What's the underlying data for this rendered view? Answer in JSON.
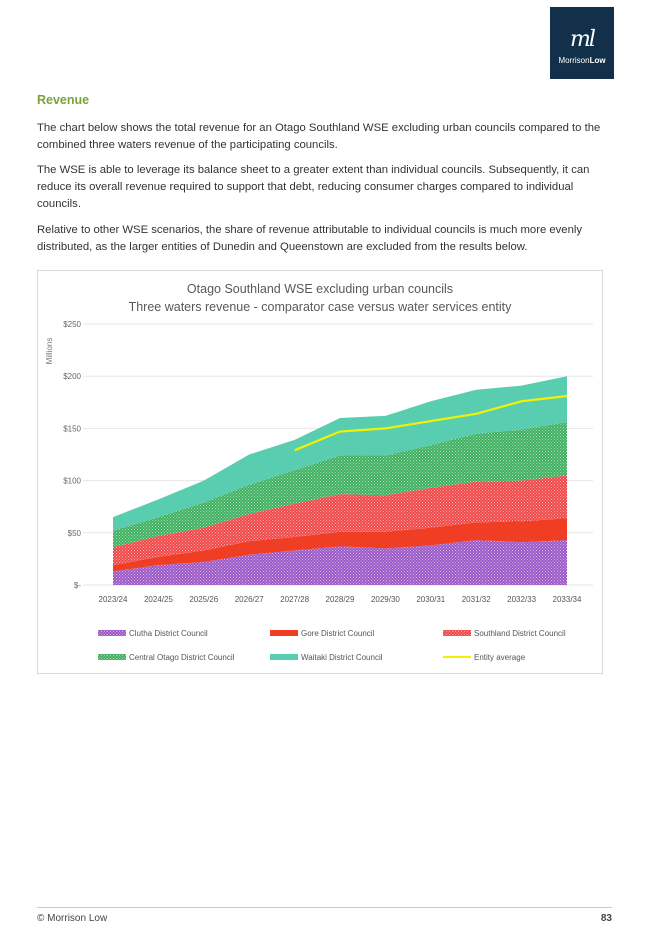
{
  "logo": {
    "text": "MorrisonLow",
    "brand_color": "#13304a"
  },
  "heading": "Revenue",
  "paragraphs": [
    "The chart below shows the total revenue for an Otago Southland WSE excluding urban councils compared to the combined three waters revenue of the participating councils.",
    "The WSE is able to leverage its balance sheet to a greater extent than individual councils. Subsequently, it can reduce its overall revenue required to support that debt, reducing consumer charges compared to individual councils.",
    "Relative to other WSE scenarios, the share of revenue attributable to individual councils is much more evenly distributed, as the larger entities of Dunedin and Queenstown are excluded from the results below."
  ],
  "chart_data": {
    "type": "area",
    "stacked": true,
    "title": "Otago Southland WSE excluding urban councils",
    "subtitle": "Three waters revenue - comparator case versus water services entity",
    "ylabel": "Millions",
    "xlabel": "",
    "ylim": [
      0,
      250
    ],
    "yticks": [
      0,
      50,
      100,
      150,
      200,
      250
    ],
    "ytick_labels": [
      "$-",
      "$50",
      "$100",
      "$150",
      "$200",
      "$250"
    ],
    "grid": true,
    "legend": "bottom",
    "categories": [
      "2023/24",
      "2024/25",
      "2025/26",
      "2026/27",
      "2027/28",
      "2028/29",
      "2029/30",
      "2030/31",
      "2031/32",
      "2032/33",
      "2033/34"
    ],
    "series": [
      {
        "name": "Clutha District Council",
        "kind": "area",
        "pattern": true,
        "color": "#9b59c8",
        "values": [
          13,
          19,
          22,
          29,
          33,
          37,
          35,
          38,
          43,
          41,
          43
        ]
      },
      {
        "name": "Gore District Council",
        "kind": "area",
        "pattern": false,
        "color": "#ef3e23",
        "values": [
          6,
          8,
          11,
          13,
          13,
          14,
          16,
          17,
          17,
          20,
          21
        ]
      },
      {
        "name": "Southland District Council",
        "kind": "area",
        "pattern": true,
        "color": "#f04848",
        "values": [
          17,
          20,
          22,
          26,
          32,
          36,
          35,
          38,
          39,
          39,
          41
        ]
      },
      {
        "name": "Central Otago District Council",
        "kind": "area",
        "pattern": true,
        "color": "#3fb060",
        "values": [
          16,
          18,
          24,
          28,
          32,
          37,
          38,
          41,
          46,
          49,
          51
        ]
      },
      {
        "name": "Waitaki District Council",
        "kind": "area",
        "pattern": false,
        "color": "#59cdb0",
        "values": [
          13,
          17,
          21,
          29,
          29,
          36,
          38,
          42,
          42,
          42,
          44
        ]
      },
      {
        "name": "Entity average",
        "kind": "line",
        "color": "#f2f200",
        "values": [
          null,
          null,
          null,
          null,
          129,
          147,
          150,
          157,
          164,
          176,
          181
        ]
      }
    ]
  },
  "footer": {
    "left": "© Morrison Low",
    "page": "83"
  }
}
